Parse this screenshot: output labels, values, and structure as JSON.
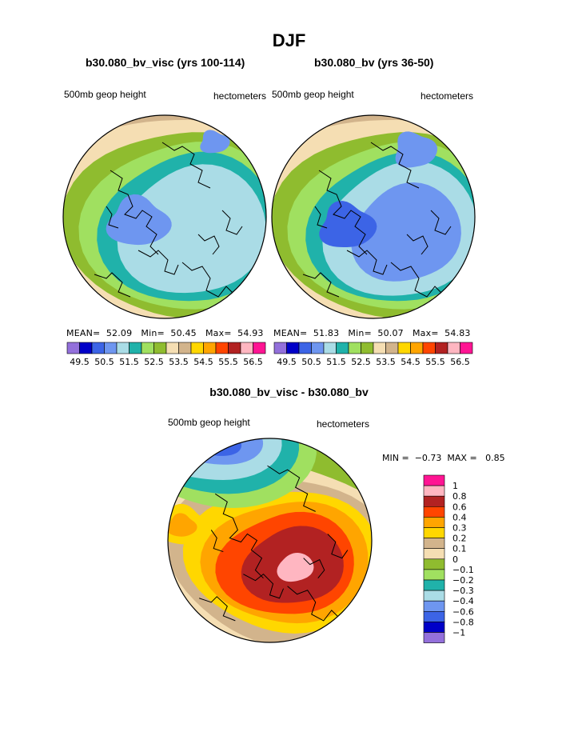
{
  "title": "DJF",
  "left_panel": {
    "case": "b30.080_bv_visc (yrs 100-114)",
    "field": "500mb geop height",
    "units": "hectometers",
    "stats": {
      "mean_label": "MEAN=",
      "mean": "52.09",
      "min_label": "Min=",
      "min": "50.45",
      "max_label": "Max=",
      "max": "54.93"
    }
  },
  "right_panel": {
    "case": "b30.080_bv (yrs 36-50)",
    "field": "500mb geop height",
    "units": "hectometers",
    "stats": {
      "mean_label": "MEAN=",
      "mean": "51.83",
      "min_label": "Min=",
      "min": "50.07",
      "max_label": "Max=",
      "max": "54.83"
    }
  },
  "diff_panel": {
    "case": "b30.080_bv_visc - b30.080_bv",
    "field": "500mb geop height",
    "units": "hectometers",
    "min_label": "MIN =",
    "min": "−0.73",
    "max_label": "MAX =",
    "max": "0.85"
  },
  "chart_data": [
    {
      "type": "heatmap",
      "title": "b30.080_bv_visc (yrs 100-114)",
      "subtitle": "500mb geop height",
      "units": "hectometers",
      "projection": "polar stereographic (Northern Hemisphere)",
      "colorbar": {
        "orientation": "horizontal",
        "tick_labels": [
          "49.5",
          "50.5",
          "51.5",
          "52.5",
          "53.5",
          "54.5",
          "55.5",
          "56.5"
        ],
        "levels": [
          49.5,
          50,
          50.5,
          51,
          51.5,
          52,
          52.5,
          53,
          53.5,
          54,
          54.5,
          55,
          55.5,
          56,
          56.5
        ],
        "colors": [
          "#9370DB",
          "#0000C8",
          "#3C64E6",
          "#6E96F0",
          "#AADCE6",
          "#20B2AA",
          "#A0E060",
          "#8FBC2F",
          "#F5DEB3",
          "#D2B48C",
          "#FFD700",
          "#FFA500",
          "#FF4500",
          "#B22222",
          "#FFB6C1",
          "#FF1493"
        ]
      },
      "mean": 52.09,
      "min": 50.45,
      "max": 54.93
    },
    {
      "type": "heatmap",
      "title": "b30.080_bv (yrs 36-50)",
      "subtitle": "500mb geop height",
      "units": "hectometers",
      "projection": "polar stereographic (Northern Hemisphere)",
      "colorbar": {
        "orientation": "horizontal",
        "tick_labels": [
          "49.5",
          "50.5",
          "51.5",
          "52.5",
          "53.5",
          "54.5",
          "55.5",
          "56.5"
        ],
        "levels": [
          49.5,
          50,
          50.5,
          51,
          51.5,
          52,
          52.5,
          53,
          53.5,
          54,
          54.5,
          55,
          55.5,
          56,
          56.5
        ],
        "colors": [
          "#9370DB",
          "#0000C8",
          "#3C64E6",
          "#6E96F0",
          "#AADCE6",
          "#20B2AA",
          "#A0E060",
          "#8FBC2F",
          "#F5DEB3",
          "#D2B48C",
          "#FFD700",
          "#FFA500",
          "#FF4500",
          "#B22222",
          "#FFB6C1",
          "#FF1493"
        ]
      },
      "mean": 51.83,
      "min": 50.07,
      "max": 54.83
    },
    {
      "type": "heatmap",
      "title": "b30.080_bv_visc - b30.080_bv",
      "subtitle": "500mb geop height",
      "units": "hectometers",
      "projection": "polar stereographic (Northern Hemisphere)",
      "colorbar": {
        "orientation": "vertical",
        "tick_labels": [
          "1",
          "0.8",
          "0.6",
          "0.4",
          "0.3",
          "0.2",
          "0.1",
          "0",
          "−0.1",
          "−0.2",
          "−0.3",
          "−0.4",
          "−0.6",
          "−0.8",
          "−1"
        ],
        "colors": [
          "#FF1493",
          "#FFB6C1",
          "#B22222",
          "#FF4500",
          "#FFA500",
          "#FFD700",
          "#D2B48C",
          "#F5DEB3",
          "#8FBC2F",
          "#A0E060",
          "#20B2AA",
          "#AADCE6",
          "#6E96F0",
          "#3C64E6",
          "#0000C8",
          "#9370DB"
        ]
      },
      "min": -0.73,
      "max": 0.85
    }
  ]
}
